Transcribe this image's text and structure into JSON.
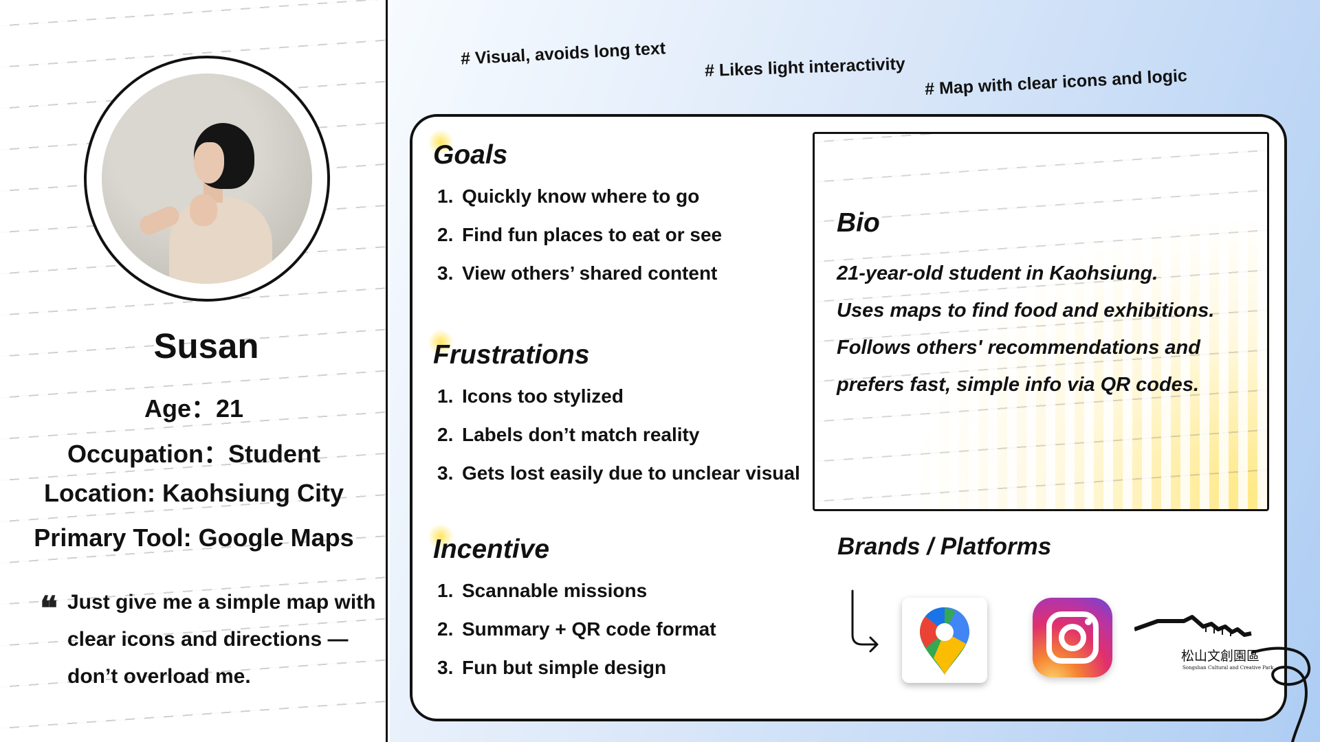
{
  "persona": {
    "name": "Susan",
    "age": "Age：21",
    "occupation": "Occupation：Student",
    "location": "Location: Kaohsiung City",
    "primary_tool": "Primary Tool: Google Maps",
    "quote": "Just give me a simple map with clear icons and directions —don’t overload me."
  },
  "tags": [
    "# Visual, avoids long text",
    "# Likes light interactivity",
    "# Map with clear icons and logic"
  ],
  "goals": {
    "title": "Goals",
    "items": [
      "Quickly know where to go",
      "Find fun places to eat or see",
      "View others’ shared content"
    ]
  },
  "frustrations": {
    "title": "Frustrations",
    "items": [
      "Icons too stylized",
      "Labels don’t match reality",
      "Gets lost easily due to unclear visual"
    ]
  },
  "incentive": {
    "title": "Incentive",
    "items": [
      "Scannable missions",
      "Summary + QR code format",
      "Fun but simple design"
    ]
  },
  "bio": {
    "title": "Bio",
    "lines": [
      "21-year-old student in Kaohsiung.",
      "Uses maps to find food and exhibitions.",
      "Follows others' recommendations and",
      "prefers fast, simple info via QR codes."
    ]
  },
  "brands": {
    "title": "Brands / Platforms",
    "items": [
      {
        "name": "Google Maps",
        "icon": "google-maps-icon"
      },
      {
        "name": "Instagram",
        "icon": "instagram-icon"
      },
      {
        "name": "Songshan Cultural and Creative Park",
        "icon": "songshan-park-logo",
        "label_cn": "松山文創園區",
        "label_en": "Songshan Cultural and Creative Park"
      }
    ]
  },
  "numbers": [
    "1.",
    "2.",
    "3."
  ]
}
